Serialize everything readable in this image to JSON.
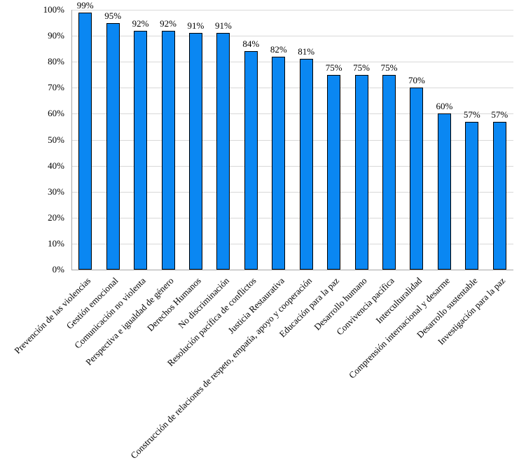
{
  "chart_data": {
    "type": "bar",
    "title": "",
    "xlabel": "",
    "ylabel": "",
    "categories": [
      "Prevención de las violencias",
      "Gestión emocional",
      "Comunicación no violenta",
      "Perspectiva e igualdad de género",
      "Derechos Humanos",
      "No discriminación",
      "Resolución pacífica de conflictos",
      "Justicia Restaurativa",
      "Construcción de relaciones de respeto, empatía, apoyo y cooperación",
      "Educación para la paz",
      "Desarrollo humano",
      "Convivencia pacífica",
      "Interculturalidad",
      "Comprensión internacional y desarme",
      "Desarrollo sustentable",
      "Investigación para la paz"
    ],
    "values": [
      99,
      95,
      92,
      92,
      91,
      91,
      84,
      82,
      81,
      75,
      75,
      75,
      70,
      60,
      57,
      57
    ],
    "data_labels": [
      "99%",
      "95%",
      "92%",
      "92%",
      "91%",
      "91%",
      "84%",
      "82%",
      "81%",
      "75%",
      "75%",
      "75%",
      "70%",
      "60%",
      "57%",
      "57%"
    ],
    "ylim": [
      0,
      100
    ],
    "ytick_step": 10,
    "ytick_suffix": "%",
    "grid": true,
    "legend": "none",
    "bar_color": "#0a87f2",
    "bar_border_color": "#000000",
    "gridline_color": "#d9d9d9",
    "axis_color": "#a6a6a6",
    "label_color": "#000000"
  }
}
